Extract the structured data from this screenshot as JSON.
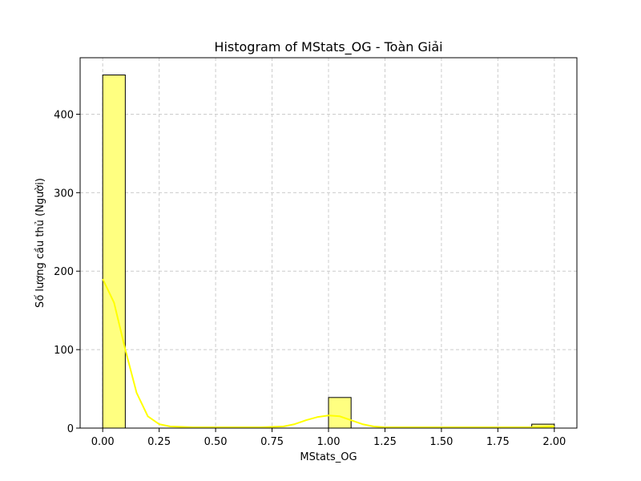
{
  "chart_data": {
    "type": "bar",
    "title": "Histogram of MStats_OG - Toàn Giải",
    "xlabel": "MStats_OG",
    "ylabel": "Số lượng cầu thủ (Người)",
    "xlim": [
      -0.1,
      2.1
    ],
    "ylim": [
      0,
      472
    ],
    "grid": true,
    "x_ticks": [
      {
        "value": 0.0,
        "label": "0.00"
      },
      {
        "value": 0.25,
        "label": "0.25"
      },
      {
        "value": 0.5,
        "label": "0.50"
      },
      {
        "value": 0.75,
        "label": "0.75"
      },
      {
        "value": 1.0,
        "label": "1.00"
      },
      {
        "value": 1.25,
        "label": "1.25"
      },
      {
        "value": 1.5,
        "label": "1.50"
      },
      {
        "value": 1.75,
        "label": "1.75"
      },
      {
        "value": 2.0,
        "label": "2.00"
      }
    ],
    "y_ticks": [
      {
        "value": 0,
        "label": "0"
      },
      {
        "value": 100,
        "label": "100"
      },
      {
        "value": 200,
        "label": "200"
      },
      {
        "value": 300,
        "label": "300"
      },
      {
        "value": 400,
        "label": "400"
      }
    ],
    "bins": [
      {
        "start": 0.0,
        "end": 0.1,
        "count": 450
      },
      {
        "start": 0.1,
        "end": 0.2,
        "count": 0
      },
      {
        "start": 0.2,
        "end": 0.3,
        "count": 0
      },
      {
        "start": 0.3,
        "end": 0.4,
        "count": 0
      },
      {
        "start": 0.4,
        "end": 0.5,
        "count": 0
      },
      {
        "start": 0.5,
        "end": 0.6,
        "count": 0
      },
      {
        "start": 0.6,
        "end": 0.7,
        "count": 0
      },
      {
        "start": 0.7,
        "end": 0.8,
        "count": 0
      },
      {
        "start": 0.8,
        "end": 0.9,
        "count": 0
      },
      {
        "start": 0.9,
        "end": 1.0,
        "count": 0
      },
      {
        "start": 1.0,
        "end": 1.1,
        "count": 39
      },
      {
        "start": 1.1,
        "end": 1.2,
        "count": 0
      },
      {
        "start": 1.2,
        "end": 1.3,
        "count": 0
      },
      {
        "start": 1.3,
        "end": 1.4,
        "count": 0
      },
      {
        "start": 1.4,
        "end": 1.5,
        "count": 0
      },
      {
        "start": 1.5,
        "end": 1.6,
        "count": 0
      },
      {
        "start": 1.6,
        "end": 1.7,
        "count": 0
      },
      {
        "start": 1.7,
        "end": 1.8,
        "count": 0
      },
      {
        "start": 1.8,
        "end": 1.9,
        "count": 0
      },
      {
        "start": 1.9,
        "end": 2.0,
        "count": 5
      }
    ],
    "kde": {
      "x": [
        0.0,
        0.05,
        0.1,
        0.15,
        0.2,
        0.25,
        0.3,
        0.4,
        0.5,
        0.6,
        0.7,
        0.8,
        0.85,
        0.9,
        0.95,
        1.0,
        1.05,
        1.1,
        1.15,
        1.2,
        1.25,
        1.3,
        1.4,
        1.5,
        1.6,
        1.7,
        1.8,
        1.9,
        1.95,
        2.0
      ],
      "y": [
        190,
        160,
        100,
        45,
        15,
        5,
        2,
        1,
        1,
        1,
        1,
        2,
        5,
        10,
        14,
        16,
        15,
        10,
        5,
        2,
        1,
        1,
        1,
        1,
        1,
        1,
        1,
        1,
        1.5,
        2
      ]
    },
    "colors": {
      "bar_fill": "#ffff80",
      "bar_edge": "#000000",
      "kde_line": "#ffff00",
      "grid": "#cccccc"
    }
  }
}
